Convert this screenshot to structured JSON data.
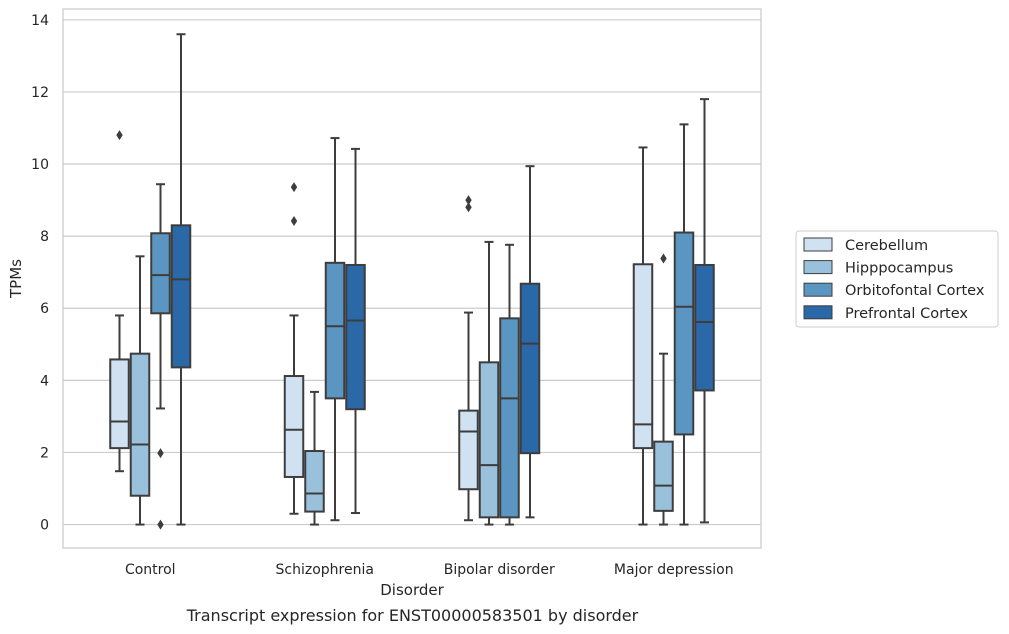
{
  "chart_data": {
    "type": "boxplot",
    "xlabel": "Disorder",
    "ylabel": "TPMs",
    "ylim": [
      -0.65,
      14.3
    ],
    "yticks": [
      0,
      2,
      4,
      6,
      8,
      10,
      12,
      14
    ],
    "grid": "horizontal",
    "legend_position": "right",
    "categories": [
      "Control",
      "Schizophrenia",
      "Bipolar disorder",
      "Major depression"
    ],
    "series": [
      {
        "name": "Cerebellum",
        "color": "#d0e1f2",
        "boxes": [
          {
            "min": 1.48,
            "q1": 2.12,
            "median": 2.86,
            "q3": 4.58,
            "max": 5.8,
            "outliers": [
              10.8
            ]
          },
          {
            "min": 0.3,
            "q1": 1.32,
            "median": 2.63,
            "q3": 4.12,
            "max": 5.8,
            "outliers": [
              9.36,
              8.42
            ]
          },
          {
            "min": 0.12,
            "q1": 0.98,
            "median": 2.58,
            "q3": 3.16,
            "max": 5.88,
            "outliers": [
              9.0,
              8.8
            ]
          },
          {
            "min": 0.0,
            "q1": 2.12,
            "median": 2.78,
            "q3": 7.22,
            "max": 10.46,
            "outliers": []
          }
        ]
      },
      {
        "name": "Hipppocampus",
        "color": "#9ac1db",
        "boxes": [
          {
            "min": 0.0,
            "q1": 0.8,
            "median": 2.22,
            "q3": 4.74,
            "max": 7.44,
            "outliers": []
          },
          {
            "min": 0.0,
            "q1": 0.36,
            "median": 0.86,
            "q3": 2.04,
            "max": 3.68,
            "outliers": []
          },
          {
            "min": 0.0,
            "q1": 0.2,
            "median": 1.65,
            "q3": 4.5,
            "max": 7.84,
            "outliers": []
          },
          {
            "min": 0.0,
            "q1": 0.38,
            "median": 1.08,
            "q3": 2.3,
            "max": 4.74,
            "outliers": [
              7.38
            ]
          }
        ]
      },
      {
        "name": "Orbitofontal Cortex",
        "color": "#5b96c2",
        "boxes": [
          {
            "min": 3.22,
            "q1": 5.86,
            "median": 6.92,
            "q3": 8.08,
            "max": 9.44,
            "outliers": [
              1.98,
              0.0
            ]
          },
          {
            "min": 0.12,
            "q1": 3.5,
            "median": 5.5,
            "q3": 7.26,
            "max": 10.72,
            "outliers": []
          },
          {
            "min": 0.0,
            "q1": 0.2,
            "median": 3.5,
            "q3": 5.72,
            "max": 7.76,
            "outliers": []
          },
          {
            "min": 0.0,
            "q1": 2.5,
            "median": 6.04,
            "q3": 8.1,
            "max": 11.1,
            "outliers": []
          }
        ]
      },
      {
        "name": "Prefrontal Cortex",
        "color": "#2a68a8",
        "boxes": [
          {
            "min": 0.0,
            "q1": 4.36,
            "median": 6.8,
            "q3": 8.3,
            "max": 13.6,
            "outliers": []
          },
          {
            "min": 0.32,
            "q1": 3.2,
            "median": 5.66,
            "q3": 7.2,
            "max": 10.42,
            "outliers": []
          },
          {
            "min": 0.2,
            "q1": 1.98,
            "median": 5.02,
            "q3": 6.68,
            "max": 9.94,
            "outliers": []
          },
          {
            "min": 0.06,
            "q1": 3.72,
            "median": 5.62,
            "q3": 7.2,
            "max": 11.8,
            "outliers": []
          }
        ]
      }
    ]
  },
  "caption": "Transcript expression for ENST00000583501 by disorder"
}
